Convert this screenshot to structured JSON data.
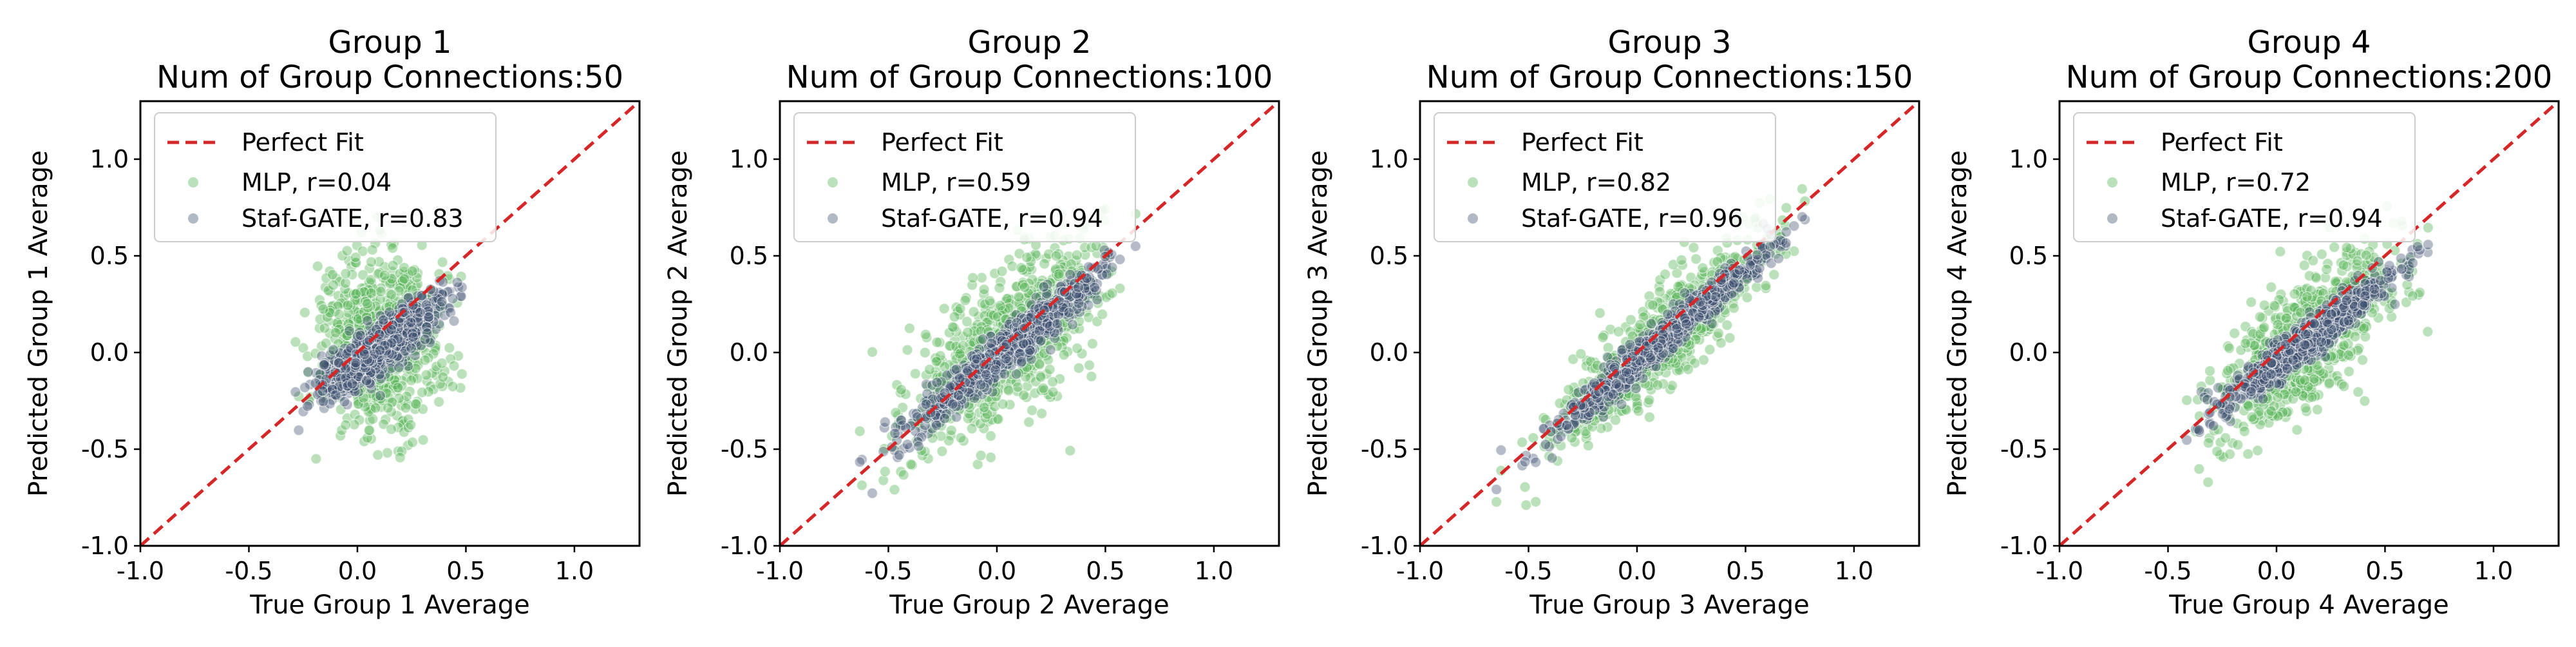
{
  "chart_data": [
    {
      "type": "scatter",
      "title": "Group 1",
      "subtitle": "Num of Group Connections:50",
      "xlabel": "True Group 1 Average",
      "ylabel": "Predicted Group 1 Average",
      "xlim": [
        -1.0,
        1.3
      ],
      "ylim": [
        -1.0,
        1.3
      ],
      "xticks": [
        "-1.0",
        "-0.5",
        "0.0",
        "0.5",
        "1.0"
      ],
      "yticks": [
        "-1.0",
        "-0.5",
        "0.0",
        "0.5",
        "1.0"
      ],
      "legend_position": "top-left",
      "legend": [
        "Perfect Fit",
        "MLP, r=0.04",
        "Staf-GATE, r=0.83"
      ],
      "series": [
        {
          "name": "MLP",
          "r": 0.04,
          "x_center": 0.1,
          "x_spread": 0.14,
          "y_center": 0.05,
          "y_spread": 0.22,
          "slope": 0.05
        },
        {
          "name": "Staf-GATE",
          "r": 0.83,
          "x_center": 0.1,
          "x_spread": 0.14,
          "y_center": 0.02,
          "y_spread": 0.07,
          "slope": 0.75
        }
      ]
    },
    {
      "type": "scatter",
      "title": "Group 2",
      "subtitle": "Num of Group Connections:100",
      "xlabel": "True Group 2 Average",
      "ylabel": "Predicted Group 2 Average",
      "xlim": [
        -1.0,
        1.3
      ],
      "ylim": [
        -1.0,
        1.3
      ],
      "xticks": [
        "-1.0",
        "-0.5",
        "0.0",
        "0.5",
        "1.0"
      ],
      "yticks": [
        "-1.0",
        "-0.5",
        "0.0",
        "0.5",
        "1.0"
      ],
      "legend_position": "top-left",
      "legend": [
        "Perfect Fit",
        "MLP, r=0.59",
        "Staf-GATE, r=0.94"
      ],
      "series": [
        {
          "name": "MLP",
          "r": 0.59,
          "x_center": 0.05,
          "x_spread": 0.22,
          "y_center": 0.05,
          "y_spread": 0.2,
          "slope": 0.8
        },
        {
          "name": "Staf-GATE",
          "r": 0.94,
          "x_center": 0.05,
          "x_spread": 0.22,
          "y_center": 0.02,
          "y_spread": 0.06,
          "slope": 0.9
        }
      ]
    },
    {
      "type": "scatter",
      "title": "Group 3",
      "subtitle": "Num of Group Connections:150",
      "xlabel": "True Group 3 Average",
      "ylabel": "Predicted Group 3 Average",
      "xlim": [
        -1.0,
        1.3
      ],
      "ylim": [
        -1.0,
        1.3
      ],
      "xticks": [
        "-1.0",
        "-0.5",
        "0.0",
        "0.5",
        "1.0"
      ],
      "yticks": [
        "-1.0",
        "-0.5",
        "0.0",
        "0.5",
        "1.0"
      ],
      "legend_position": "top-left",
      "legend": [
        "Perfect Fit",
        "MLP, r=0.82",
        "Staf-GATE, r=0.96"
      ],
      "series": [
        {
          "name": "MLP",
          "r": 0.82,
          "x_center": 0.1,
          "x_spread": 0.24,
          "y_center": 0.05,
          "y_spread": 0.12,
          "slope": 0.95
        },
        {
          "name": "Staf-GATE",
          "r": 0.96,
          "x_center": 0.1,
          "x_spread": 0.24,
          "y_center": 0.05,
          "y_spread": 0.05,
          "slope": 0.95
        }
      ]
    },
    {
      "type": "scatter",
      "title": "Group 4",
      "subtitle": "Num of Group Connections:200",
      "xlabel": "True Group 4 Average",
      "ylabel": "Predicted Group 4 Average",
      "xlim": [
        -1.0,
        1.3
      ],
      "ylim": [
        -1.0,
        1.3
      ],
      "xticks": [
        "-1.0",
        "-0.5",
        "0.0",
        "0.5",
        "1.0"
      ],
      "yticks": [
        "-1.0",
        "-0.5",
        "0.0",
        "0.5",
        "1.0"
      ],
      "legend_position": "top-left",
      "legend": [
        "Perfect Fit",
        "MLP, r=0.72",
        "Staf-GATE, r=0.94"
      ],
      "series": [
        {
          "name": "MLP",
          "r": 0.72,
          "x_center": 0.15,
          "x_spread": 0.2,
          "y_center": 0.07,
          "y_spread": 0.16,
          "slope": 0.85
        },
        {
          "name": "Staf-GATE",
          "r": 0.94,
          "x_center": 0.15,
          "x_spread": 0.2,
          "y_center": 0.07,
          "y_spread": 0.05,
          "slope": 0.85
        }
      ]
    }
  ],
  "colors": {
    "perfect_fit": "#d62728",
    "mlp": "#5cb85c",
    "staf_gate": "#3d4f6e",
    "axis": "#000000"
  }
}
